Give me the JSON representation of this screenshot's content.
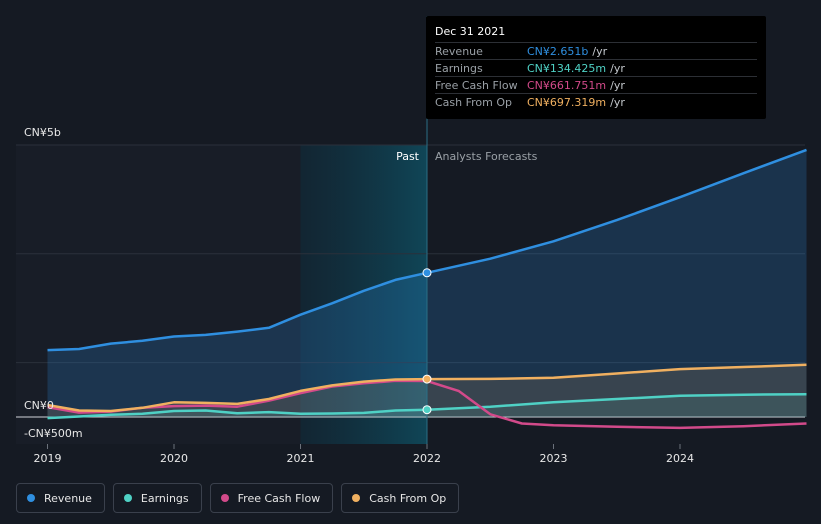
{
  "chart_data": {
    "type": "line",
    "y_top_label": "CN¥5b",
    "y_zero_label": "CN¥0",
    "y_bottom_label": "-CN¥500m",
    "ylim": [
      -500,
      5000
    ],
    "x_ticks": [
      "2019",
      "2020",
      "2021",
      "2022",
      "2023",
      "2024"
    ],
    "x_tick_values": [
      2019.0,
      2020.0,
      2021.0,
      2022.0,
      2023.0,
      2024.0
    ],
    "xlim": [
      2018.77,
      2025.0
    ],
    "past_label": "Past",
    "forecast_label": "Analysts Forecasts",
    "divider_x": 2022.0,
    "highlight_start_x": 2021.0,
    "series": [
      {
        "name": "Revenue",
        "color": "#2f8fe0",
        "points": [
          [
            2019.0,
            1230
          ],
          [
            2019.25,
            1250
          ],
          [
            2019.5,
            1350
          ],
          [
            2019.75,
            1400
          ],
          [
            2020.0,
            1480
          ],
          [
            2020.25,
            1510
          ],
          [
            2020.5,
            1570
          ],
          [
            2020.75,
            1640
          ],
          [
            2021.0,
            1880
          ],
          [
            2021.25,
            2090
          ],
          [
            2021.5,
            2320
          ],
          [
            2021.75,
            2520
          ],
          [
            2022.0,
            2651
          ],
          [
            2022.5,
            2910
          ],
          [
            2023.0,
            3230
          ],
          [
            2023.5,
            3620
          ],
          [
            2024.0,
            4040
          ],
          [
            2024.5,
            4480
          ],
          [
            2025.0,
            4910
          ]
        ]
      },
      {
        "name": "Earnings",
        "color": "#4fd1c5",
        "points": [
          [
            2019.0,
            -20
          ],
          [
            2019.25,
            10
          ],
          [
            2019.5,
            40
          ],
          [
            2019.75,
            60
          ],
          [
            2020.0,
            110
          ],
          [
            2020.25,
            120
          ],
          [
            2020.5,
            70
          ],
          [
            2020.75,
            90
          ],
          [
            2021.0,
            60
          ],
          [
            2021.25,
            65
          ],
          [
            2021.5,
            75
          ],
          [
            2021.75,
            120
          ],
          [
            2022.0,
            134.4
          ],
          [
            2022.5,
            190
          ],
          [
            2023.0,
            270
          ],
          [
            2023.5,
            330
          ],
          [
            2024.0,
            390
          ],
          [
            2024.5,
            410
          ],
          [
            2025.0,
            420
          ]
        ]
      },
      {
        "name": "Free Cash Flow",
        "color": "#d24a8a",
        "points": [
          [
            2019.0,
            180
          ],
          [
            2019.25,
            80
          ],
          [
            2019.5,
            100
          ],
          [
            2019.75,
            170
          ],
          [
            2020.0,
            200
          ],
          [
            2020.25,
            210
          ],
          [
            2020.5,
            190
          ],
          [
            2020.75,
            300
          ],
          [
            2021.0,
            440
          ],
          [
            2021.25,
            560
          ],
          [
            2021.5,
            620
          ],
          [
            2021.75,
            665
          ],
          [
            2022.0,
            661.8
          ],
          [
            2022.25,
            480
          ],
          [
            2022.5,
            50
          ],
          [
            2022.75,
            -120
          ],
          [
            2023.0,
            -150
          ],
          [
            2023.5,
            -180
          ],
          [
            2024.0,
            -200
          ],
          [
            2024.5,
            -170
          ],
          [
            2025.0,
            -120
          ]
        ]
      },
      {
        "name": "Cash From Op",
        "color": "#f0b060",
        "points": [
          [
            2019.0,
            220
          ],
          [
            2019.25,
            120
          ],
          [
            2019.5,
            110
          ],
          [
            2019.75,
            170
          ],
          [
            2020.0,
            270
          ],
          [
            2020.25,
            260
          ],
          [
            2020.5,
            240
          ],
          [
            2020.75,
            330
          ],
          [
            2021.0,
            480
          ],
          [
            2021.25,
            580
          ],
          [
            2021.5,
            650
          ],
          [
            2021.75,
            690
          ],
          [
            2022.0,
            697.3
          ],
          [
            2022.5,
            700
          ],
          [
            2023.0,
            720
          ],
          [
            2023.5,
            800
          ],
          [
            2024.0,
            880
          ],
          [
            2024.5,
            920
          ],
          [
            2025.0,
            960
          ]
        ]
      }
    ]
  },
  "tooltip": {
    "date": "Dec 31 2021",
    "unit": "/yr",
    "rows": [
      {
        "label": "Revenue",
        "value": "CN¥2.651b",
        "color": "#2f8fe0"
      },
      {
        "label": "Earnings",
        "value": "CN¥134.425m",
        "color": "#4fd1c5"
      },
      {
        "label": "Free Cash Flow",
        "value": "CN¥661.751m",
        "color": "#d24a8a"
      },
      {
        "label": "Cash From Op",
        "value": "CN¥697.319m",
        "color": "#f0b060"
      }
    ]
  },
  "legend": [
    {
      "label": "Revenue",
      "color": "#2f8fe0"
    },
    {
      "label": "Earnings",
      "color": "#4fd1c5"
    },
    {
      "label": "Free Cash Flow",
      "color": "#d24a8a"
    },
    {
      "label": "Cash From Op",
      "color": "#f0b060"
    }
  ]
}
